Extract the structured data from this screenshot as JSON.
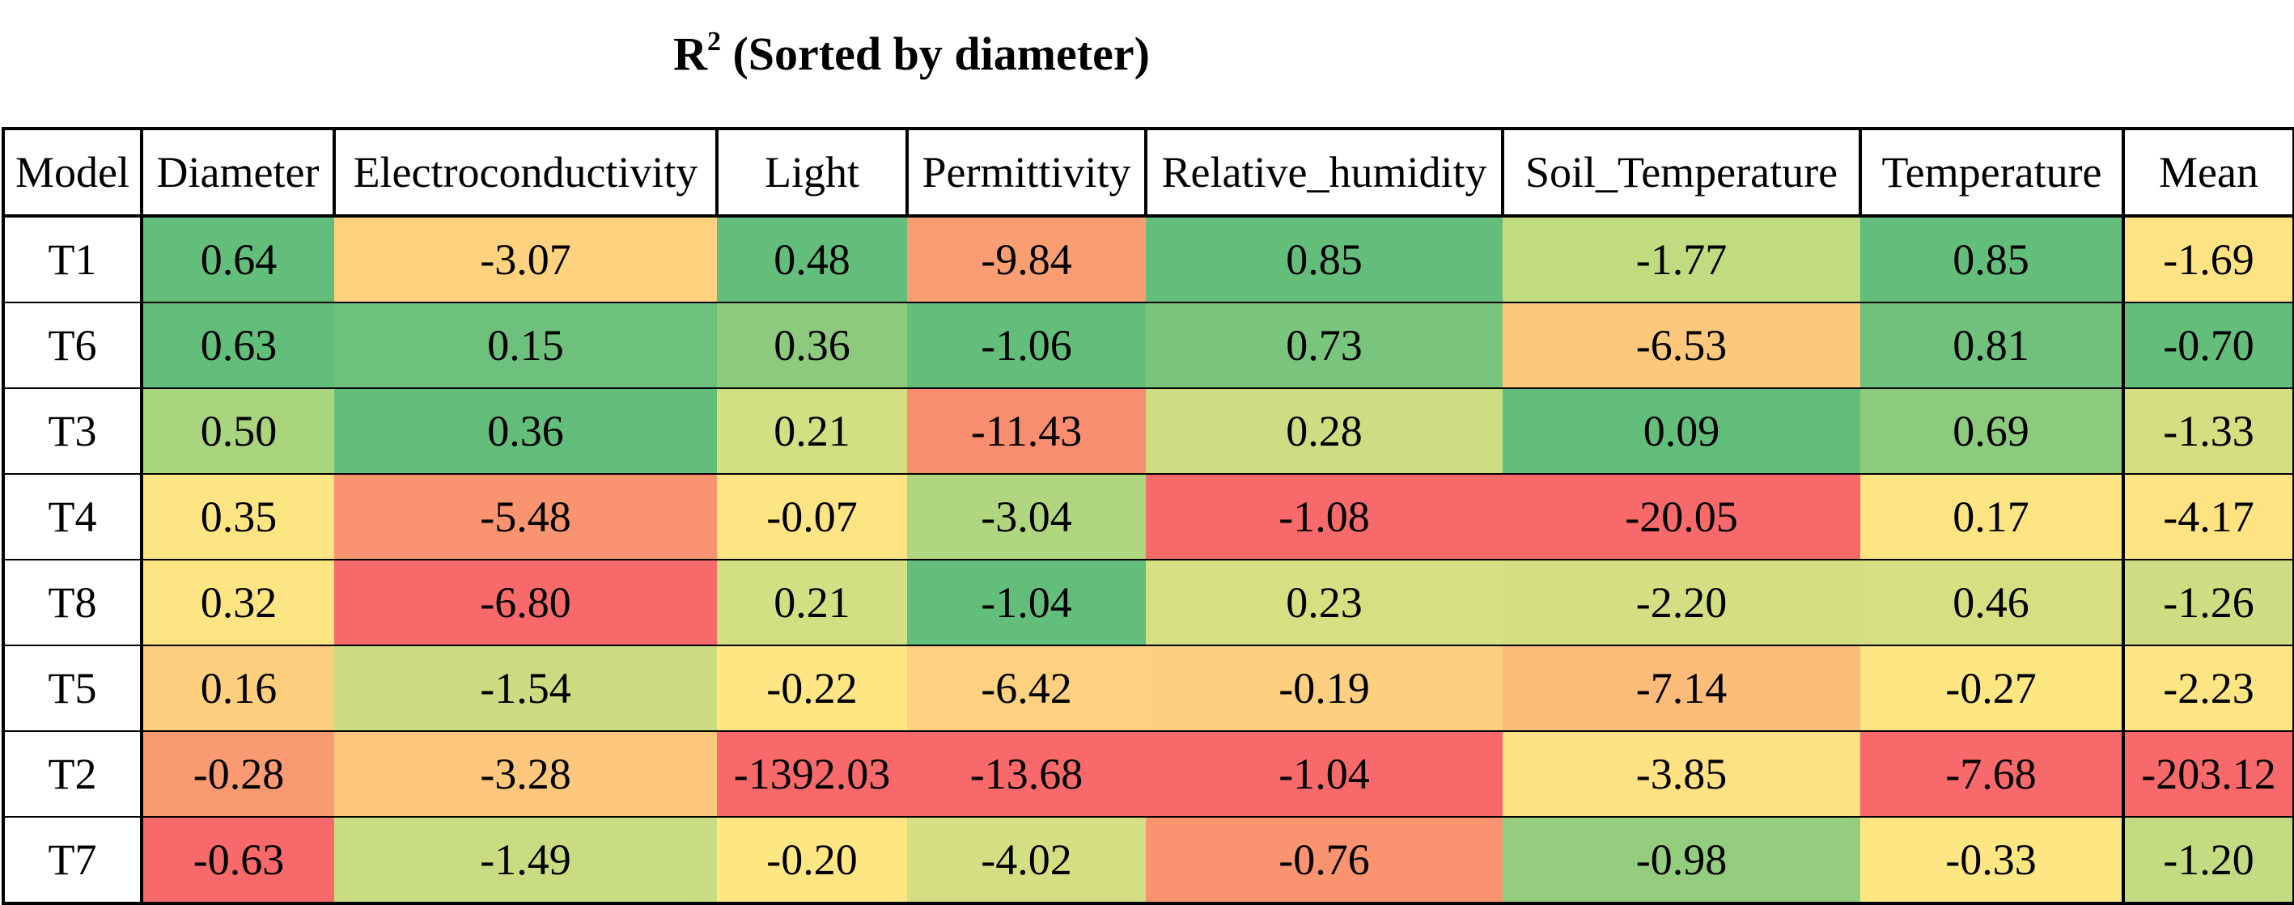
{
  "title": {
    "main": "R",
    "superscript": "2",
    "rest": " (Sorted by diameter)"
  },
  "chart_data": {
    "type": "heatmap",
    "title": "R² (Sorted by diameter)",
    "row_header": "Model",
    "columns": [
      "Diameter",
      "Electroconductivity",
      "Light",
      "Permittivity",
      "Relative_humidity",
      "Soil_Temperature",
      "Temperature",
      "Mean"
    ],
    "rows": [
      {
        "model": "T1",
        "values": [
          0.64,
          -3.07,
          0.48,
          -9.84,
          0.85,
          -1.77,
          0.85,
          -1.69
        ],
        "display": [
          "0.64",
          "-3.07",
          "0.48",
          "-9.84",
          "0.85",
          "-1.77",
          "0.85",
          "-1.69"
        ],
        "colors": [
          "#63be7b",
          "#fed27f",
          "#63be7b",
          "#f99e73",
          "#63be7b",
          "#c1db80",
          "#63be7b",
          "#fde383"
        ]
      },
      {
        "model": "T6",
        "values": [
          0.63,
          0.15,
          0.36,
          -1.06,
          0.73,
          -6.53,
          0.81,
          -0.7
        ],
        "display": [
          "0.63",
          "0.15",
          "0.36",
          "-1.06",
          "0.73",
          "-6.53",
          "0.81",
          "-0.70"
        ],
        "colors": [
          "#63be7b",
          "#6ec17c",
          "#8dca7e",
          "#63be7b",
          "#7ac57d",
          "#fcc97c",
          "#6fc17c",
          "#63be7b"
        ]
      },
      {
        "model": "T3",
        "values": [
          0.5,
          0.36,
          0.21,
          -11.43,
          0.28,
          0.09,
          0.69,
          -1.33
        ],
        "display": [
          "0.50",
          "0.36",
          "0.21",
          "-11.43",
          "0.28",
          "0.09",
          "0.69",
          "-1.33"
        ],
        "colors": [
          "#a9d57f",
          "#63be7b",
          "#d2df82",
          "#f98d70",
          "#cedd82",
          "#63be7b",
          "#8ccb7e",
          "#d4df82"
        ]
      },
      {
        "model": "T4",
        "values": [
          0.35,
          -5.48,
          -0.07,
          -3.04,
          -1.08,
          -20.05,
          0.17,
          -4.17
        ],
        "display": [
          "0.35",
          "-5.48",
          "-0.07",
          "-3.04",
          "-1.08",
          "-20.05",
          "0.17",
          "-4.17"
        ],
        "colors": [
          "#fee583",
          "#f99370",
          "#fee583",
          "#b0d680",
          "#f8696b",
          "#f8696b",
          "#fee583",
          "#fee382"
        ]
      },
      {
        "model": "T8",
        "values": [
          0.32,
          -6.8,
          0.21,
          -1.04,
          0.23,
          -2.2,
          0.46,
          -1.26
        ],
        "display": [
          "0.32",
          "-6.80",
          "0.21",
          "-1.04",
          "0.23",
          "-2.20",
          "0.46",
          "-1.26"
        ],
        "colors": [
          "#fee583",
          "#f8696b",
          "#d2df82",
          "#63be7b",
          "#d6e082",
          "#d3df82",
          "#d6e082",
          "#cedd82"
        ]
      },
      {
        "model": "T5",
        "values": [
          0.16,
          -1.54,
          -0.22,
          -6.42,
          -0.19,
          -7.14,
          -0.27,
          -2.23
        ],
        "display": [
          "0.16",
          "-1.54",
          "-0.22",
          "-6.42",
          "-0.19",
          "-7.14",
          "-0.27",
          "-2.23"
        ],
        "colors": [
          "#fdce7e",
          "#cbdc81",
          "#fee683",
          "#fdd17f",
          "#fdd07f",
          "#fcbd7b",
          "#fee683",
          "#fee583"
        ]
      },
      {
        "model": "T2",
        "values": [
          -0.28,
          -3.28,
          -1392.03,
          -13.68,
          -1.04,
          -3.85,
          -7.68,
          -203.12
        ],
        "display": [
          "-0.28",
          "-3.28",
          "-1392.03",
          "-13.68",
          "-1.04",
          "-3.85",
          "-7.68",
          "-203.12"
        ],
        "colors": [
          "#f99a72",
          "#fdc87d",
          "#f8696b",
          "#f8696b",
          "#f8696b",
          "#fee182",
          "#f8696b",
          "#f8696b"
        ]
      },
      {
        "model": "T7",
        "values": [
          -0.63,
          -1.49,
          -0.2,
          -4.02,
          -0.76,
          -0.98,
          -0.33,
          -1.2
        ],
        "display": [
          "-0.63",
          "-1.49",
          "-0.20",
          "-4.02",
          "-0.76",
          "-0.98",
          "-0.33",
          "-1.20"
        ],
        "colors": [
          "#f8696b",
          "#c9dc81",
          "#fee683",
          "#d3df82",
          "#f99370",
          "#95cd7e",
          "#fee683",
          "#c3db81"
        ]
      }
    ]
  }
}
